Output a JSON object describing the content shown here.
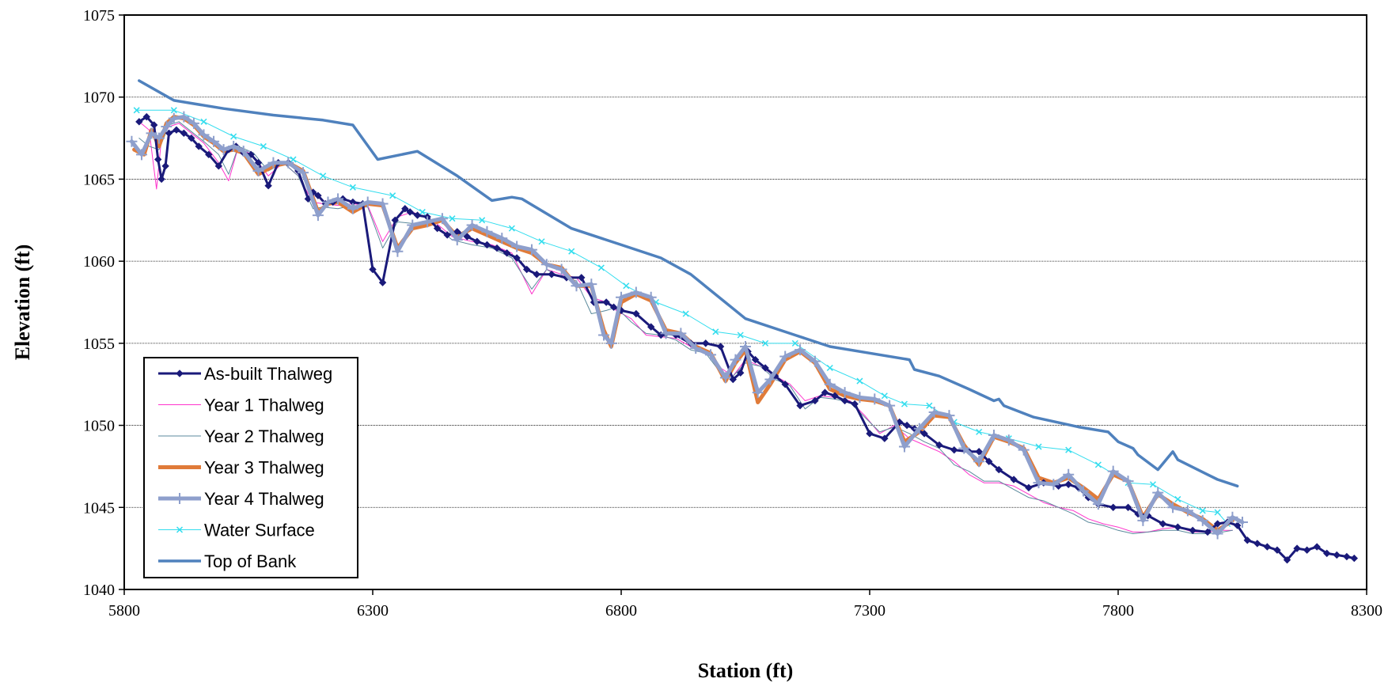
{
  "chart_data": {
    "type": "line",
    "title": "",
    "xlabel": "Station (ft)",
    "ylabel": "Elevation (ft)",
    "xlim": [
      5800,
      8300
    ],
    "ylim": [
      1040,
      1075
    ],
    "x_ticks": [
      5800,
      6300,
      6800,
      7300,
      7800,
      8300
    ],
    "y_ticks": [
      1040,
      1045,
      1050,
      1055,
      1060,
      1065,
      1070,
      1075
    ],
    "grid": "horizontal major gridlines",
    "legend_position": "bottom-left",
    "series": [
      {
        "name": "As-built Thalweg",
        "color": "#1a1a7a",
        "marker": "diamond",
        "x": [
          5830,
          5845,
          5860,
          5868,
          5875,
          5883,
          5890,
          5905,
          5920,
          5935,
          5950,
          5970,
          5990,
          6010,
          6025,
          6040,
          6055,
          6070,
          6090,
          6110,
          6130,
          6150,
          6170,
          6180,
          6190,
          6205,
          6220,
          6240,
          6260,
          6280,
          6300,
          6320,
          6345,
          6365,
          6375,
          6390,
          6410,
          6430,
          6450,
          6470,
          6490,
          6510,
          6530,
          6550,
          6570,
          6590,
          6610,
          6630,
          6660,
          6690,
          6720,
          6745,
          6770,
          6785,
          6800,
          6830,
          6860,
          6880,
          6890,
          6910,
          6940,
          6970,
          7000,
          7025,
          7040,
          7055,
          7070,
          7090,
          7110,
          7130,
          7160,
          7190,
          7210,
          7230,
          7250,
          7270,
          7300,
          7330,
          7360,
          7375,
          7390,
          7410,
          7440,
          7470,
          7500,
          7520,
          7540,
          7560,
          7590,
          7620,
          7650,
          7680,
          7700,
          7720,
          7740,
          7760,
          7790,
          7820,
          7840,
          7860,
          7890,
          7920,
          7950,
          7980,
          8000,
          8020,
          8040,
          8060,
          8080,
          8100,
          8120,
          8140,
          8160,
          8180,
          8200,
          8220,
          8240,
          8260,
          8275
        ],
        "y": [
          1068.5,
          1068.8,
          1068.3,
          1066.2,
          1065.0,
          1065.8,
          1067.8,
          1068.0,
          1067.8,
          1067.5,
          1067.0,
          1066.5,
          1065.8,
          1066.8,
          1067.0,
          1066.6,
          1066.5,
          1066.0,
          1064.6,
          1066.0,
          1066.0,
          1065.5,
          1063.8,
          1064.2,
          1064.0,
          1063.5,
          1063.6,
          1063.8,
          1063.6,
          1063.5,
          1059.5,
          1058.7,
          1062.5,
          1063.2,
          1063.0,
          1062.8,
          1062.7,
          1062.0,
          1061.6,
          1061.8,
          1061.5,
          1061.2,
          1061.0,
          1060.8,
          1060.5,
          1060.2,
          1059.5,
          1059.2,
          1059.2,
          1059.0,
          1059.0,
          1057.5,
          1057.5,
          1057.2,
          1057.0,
          1056.8,
          1056.0,
          1055.5,
          1055.6,
          1055.5,
          1055.0,
          1055.0,
          1054.8,
          1052.8,
          1053.2,
          1054.5,
          1054.0,
          1053.5,
          1053.0,
          1052.5,
          1051.2,
          1051.5,
          1052.0,
          1051.8,
          1051.5,
          1051.3,
          1049.5,
          1049.2,
          1050.2,
          1050.0,
          1049.8,
          1049.5,
          1048.8,
          1048.5,
          1048.4,
          1048.4,
          1047.8,
          1047.3,
          1046.7,
          1046.2,
          1046.5,
          1046.3,
          1046.4,
          1046.2,
          1045.6,
          1045.2,
          1045.0,
          1045.0,
          1044.6,
          1044.5,
          1044.0,
          1043.8,
          1043.6,
          1043.5,
          1044.0,
          1044.1,
          1043.9,
          1043.0,
          1042.8,
          1042.6,
          1042.4,
          1041.8,
          1042.5,
          1042.4,
          1042.6,
          1042.2,
          1042.1,
          1042.0,
          1041.9
        ]
      },
      {
        "name": "Year 1 Thalweg",
        "color": "#ff33cc",
        "marker": "none",
        "x": [
          5830,
          5850,
          5865,
          5875,
          5890,
          5910,
          5935,
          5960,
          5990,
          6010,
          6030,
          6060,
          6090,
          6120,
          6150,
          6180,
          6200,
          6230,
          6260,
          6290,
          6320,
          6350,
          6380,
          6420,
          6460,
          6500,
          6540,
          6580,
          6620,
          6650,
          6680,
          6710,
          6740,
          6770,
          6790,
          6820,
          6850,
          6880,
          6910,
          6940,
          6970,
          7000,
          7025,
          7050,
          7080,
          7110,
          7140,
          7170,
          7200,
          7230,
          7260,
          7290,
          7320,
          7350,
          7380,
          7410,
          7440,
          7470,
          7500,
          7530,
          7560,
          7590,
          7620,
          7650,
          7680,
          7710,
          7740,
          7770,
          7800,
          7830,
          7860,
          7890,
          7920,
          7950,
          7980,
          8010,
          8030
        ],
        "y": [
          1068.5,
          1068.0,
          1064.4,
          1067.5,
          1068.2,
          1068.4,
          1067.8,
          1067.2,
          1066.0,
          1064.9,
          1067.0,
          1066.4,
          1065.2,
          1066.0,
          1065.2,
          1063.6,
          1063.5,
          1063.4,
          1063.5,
          1063.4,
          1061.2,
          1062.7,
          1063.0,
          1062.5,
          1061.5,
          1061.2,
          1061.0,
          1060.5,
          1058.0,
          1059.5,
          1059.2,
          1059.0,
          1057.8,
          1057.5,
          1057.0,
          1056.5,
          1055.5,
          1055.4,
          1055.3,
          1054.8,
          1054.5,
          1053.5,
          1053.0,
          1054.0,
          1053.6,
          1053.0,
          1052.5,
          1051.5,
          1051.8,
          1051.7,
          1051.5,
          1050.6,
          1049.5,
          1050.0,
          1049.2,
          1048.8,
          1048.4,
          1047.8,
          1047.0,
          1046.5,
          1046.5,
          1046.3,
          1045.8,
          1045.3,
          1045.0,
          1044.8,
          1044.3,
          1044.0,
          1043.8,
          1043.5,
          1043.5,
          1043.7,
          1043.8,
          1043.5,
          1043.5,
          1043.6,
          1043.6
        ]
      },
      {
        "name": "Year 2 Thalweg",
        "color": "#5b8a9c",
        "marker": "none",
        "x": [
          5830,
          5850,
          5870,
          5890,
          5910,
          5935,
          5960,
          5990,
          6010,
          6030,
          6060,
          6090,
          6120,
          6150,
          6180,
          6200,
          6230,
          6260,
          6290,
          6320,
          6350,
          6380,
          6420,
          6460,
          6500,
          6540,
          6580,
          6620,
          6650,
          6680,
          6710,
          6740,
          6770,
          6790,
          6820,
          6850,
          6880,
          6910,
          6940,
          6970,
          7000,
          7025,
          7050,
          7080,
          7110,
          7140,
          7170,
          7200,
          7230,
          7260,
          7290,
          7320,
          7350,
          7380,
          7410,
          7440,
          7470,
          7500,
          7530,
          7560,
          7590,
          7620,
          7650,
          7680,
          7710,
          7740,
          7770,
          7800,
          7830,
          7860,
          7890,
          7920,
          7950,
          7980,
          8010,
          8030
        ],
        "y": [
          1067.5,
          1067.0,
          1066.8,
          1068.3,
          1068.5,
          1067.9,
          1067.3,
          1066.5,
          1065.3,
          1067.0,
          1066.6,
          1065.5,
          1066.0,
          1065.2,
          1063.2,
          1063.3,
          1063.2,
          1063.4,
          1063.3,
          1060.8,
          1062.4,
          1062.3,
          1062.3,
          1061.3,
          1061.0,
          1060.8,
          1060.2,
          1058.3,
          1059.5,
          1059.0,
          1058.8,
          1056.8,
          1057.0,
          1057.2,
          1056.3,
          1055.6,
          1055.5,
          1055.2,
          1054.6,
          1054.4,
          1053.2,
          1053.0,
          1053.8,
          1053.6,
          1052.8,
          1052.4,
          1051.0,
          1051.7,
          1051.6,
          1051.4,
          1050.5,
          1049.6,
          1049.9,
          1049.5,
          1049.0,
          1048.6,
          1047.6,
          1047.2,
          1046.6,
          1046.6,
          1046.1,
          1045.6,
          1045.4,
          1045.0,
          1044.6,
          1044.1,
          1043.9,
          1043.6,
          1043.4,
          1043.5,
          1043.6,
          1043.6,
          1043.4,
          1043.4,
          1043.5,
          1043.6
        ]
      },
      {
        "name": "Year 3 Thalweg",
        "color": "#e07b39",
        "marker": "none",
        "x": [
          5820,
          5840,
          5855,
          5870,
          5885,
          5900,
          5920,
          5940,
          5960,
          5980,
          6000,
          6020,
          6040,
          6070,
          6100,
          6130,
          6160,
          6190,
          6210,
          6230,
          6260,
          6290,
          6320,
          6350,
          6380,
          6410,
          6440,
          6470,
          6500,
          6530,
          6560,
          6590,
          6620,
          6650,
          6680,
          6710,
          6740,
          6765,
          6780,
          6800,
          6830,
          6860,
          6890,
          6920,
          6950,
          6980,
          7010,
          7030,
          7050,
          7075,
          7100,
          7130,
          7160,
          7190,
          7220,
          7250,
          7280,
          7310,
          7340,
          7370,
          7400,
          7430,
          7460,
          7490,
          7520,
          7550,
          7580,
          7610,
          7640,
          7670,
          7700,
          7730,
          7760,
          7790,
          7820,
          7850,
          7880,
          7910,
          7940,
          7970,
          8000,
          8030
        ],
        "y": [
          1066.8,
          1066.5,
          1068.0,
          1067.0,
          1068.4,
          1068.8,
          1068.7,
          1068.3,
          1067.6,
          1067.2,
          1066.7,
          1066.8,
          1066.6,
          1065.3,
          1065.8,
          1066.0,
          1065.5,
          1063.0,
          1063.5,
          1063.6,
          1063.0,
          1063.5,
          1063.4,
          1060.8,
          1062.0,
          1062.2,
          1062.5,
          1061.5,
          1062.0,
          1061.6,
          1061.2,
          1060.8,
          1060.5,
          1059.8,
          1059.6,
          1058.5,
          1058.5,
          1055.8,
          1054.8,
          1057.5,
          1058.0,
          1057.6,
          1055.8,
          1055.6,
          1054.8,
          1054.4,
          1052.7,
          1053.8,
          1054.6,
          1051.4,
          1052.5,
          1054.0,
          1054.5,
          1053.8,
          1052.2,
          1051.8,
          1051.6,
          1051.5,
          1051.2,
          1049.0,
          1049.6,
          1050.6,
          1050.5,
          1048.8,
          1047.6,
          1049.3,
          1049.0,
          1048.6,
          1046.8,
          1046.5,
          1046.8,
          1046.2,
          1045.5,
          1047.0,
          1046.6,
          1044.4,
          1045.8,
          1045.2,
          1044.7,
          1044.3,
          1043.6,
          1044.2
        ]
      },
      {
        "name": "Year 4 Thalweg",
        "color": "#8e9fcc",
        "marker": "plus",
        "x": [
          5815,
          5835,
          5855,
          5870,
          5885,
          5900,
          5920,
          5940,
          5960,
          5980,
          6000,
          6020,
          6040,
          6070,
          6100,
          6130,
          6160,
          6190,
          6210,
          6230,
          6260,
          6290,
          6320,
          6350,
          6380,
          6410,
          6440,
          6470,
          6500,
          6530,
          6560,
          6590,
          6620,
          6650,
          6680,
          6710,
          6740,
          6765,
          6780,
          6800,
          6830,
          6860,
          6890,
          6920,
          6950,
          6980,
          7010,
          7030,
          7050,
          7075,
          7100,
          7130,
          7160,
          7190,
          7220,
          7250,
          7280,
          7310,
          7340,
          7370,
          7400,
          7430,
          7460,
          7490,
          7520,
          7550,
          7580,
          7610,
          7640,
          7670,
          7700,
          7730,
          7760,
          7790,
          7820,
          7850,
          7880,
          7910,
          7940,
          7970,
          8000,
          8030,
          8050
        ],
        "y": [
          1067.3,
          1066.5,
          1067.8,
          1067.5,
          1068.2,
          1068.7,
          1068.8,
          1068.4,
          1067.7,
          1067.3,
          1066.8,
          1067.0,
          1066.7,
          1065.5,
          1066.0,
          1066.0,
          1065.4,
          1062.8,
          1063.6,
          1063.8,
          1063.2,
          1063.6,
          1063.5,
          1060.6,
          1062.2,
          1062.4,
          1062.6,
          1061.3,
          1062.2,
          1061.8,
          1061.4,
          1060.9,
          1060.7,
          1059.8,
          1059.5,
          1058.5,
          1058.6,
          1055.5,
          1055.0,
          1057.8,
          1058.1,
          1057.8,
          1055.6,
          1055.6,
          1054.7,
          1054.3,
          1052.9,
          1054.0,
          1054.8,
          1052.0,
          1052.8,
          1054.2,
          1054.6,
          1053.9,
          1052.5,
          1052.0,
          1051.7,
          1051.6,
          1051.2,
          1048.7,
          1049.8,
          1050.8,
          1050.6,
          1048.6,
          1047.8,
          1049.4,
          1049.1,
          1048.5,
          1046.5,
          1046.4,
          1047.0,
          1046.0,
          1045.2,
          1047.2,
          1046.6,
          1044.2,
          1045.9,
          1045.0,
          1044.8,
          1044.2,
          1043.4,
          1044.4,
          1044.1
        ]
      },
      {
        "name": "Water Surface",
        "color": "#33ddee",
        "marker": "x",
        "x": [
          5825,
          5900,
          5960,
          6020,
          6080,
          6140,
          6200,
          6260,
          6340,
          6400,
          6460,
          6520,
          6580,
          6640,
          6700,
          6760,
          6810,
          6870,
          6930,
          6990,
          7040,
          7090,
          7150,
          7220,
          7280,
          7330,
          7370,
          7420,
          7470,
          7520,
          7580,
          7640,
          7700,
          7760,
          7820,
          7870,
          7920,
          7970,
          8000,
          8020
        ],
        "y": [
          1069.2,
          1069.2,
          1068.5,
          1067.6,
          1067.0,
          1066.2,
          1065.2,
          1064.5,
          1064.0,
          1063.0,
          1062.6,
          1062.5,
          1062.0,
          1061.2,
          1060.6,
          1059.6,
          1058.5,
          1057.5,
          1056.8,
          1055.7,
          1055.5,
          1055.0,
          1055.0,
          1053.5,
          1052.7,
          1051.8,
          1051.3,
          1051.2,
          1050.2,
          1049.6,
          1049.2,
          1048.7,
          1048.5,
          1047.6,
          1046.5,
          1046.4,
          1045.5,
          1044.8,
          1044.7,
          1044.0
        ]
      },
      {
        "name": "Top of Bank",
        "color": "#4f81bd",
        "marker": "none",
        "x": [
          5830,
          5900,
          6000,
          6100,
          6200,
          6260,
          6310,
          6390,
          6470,
          6540,
          6580,
          6600,
          6700,
          6800,
          6880,
          6940,
          7050,
          7150,
          7220,
          7300,
          7380,
          7390,
          7440,
          7500,
          7550,
          7560,
          7570,
          7630,
          7720,
          7780,
          7800,
          7830,
          7840,
          7880,
          7910,
          7920,
          7980,
          8000,
          8040
        ],
        "y": [
          1071.0,
          1069.8,
          1069.3,
          1068.9,
          1068.6,
          1068.3,
          1066.2,
          1066.7,
          1065.2,
          1063.7,
          1063.9,
          1063.8,
          1062.0,
          1061.0,
          1060.2,
          1059.2,
          1056.5,
          1055.5,
          1054.8,
          1054.4,
          1054.0,
          1053.4,
          1053.0,
          1052.2,
          1051.5,
          1051.6,
          1051.2,
          1050.5,
          1049.9,
          1049.6,
          1049.0,
          1048.6,
          1048.2,
          1047.3,
          1048.4,
          1047.9,
          1047.0,
          1046.7,
          1046.3
        ]
      }
    ]
  }
}
